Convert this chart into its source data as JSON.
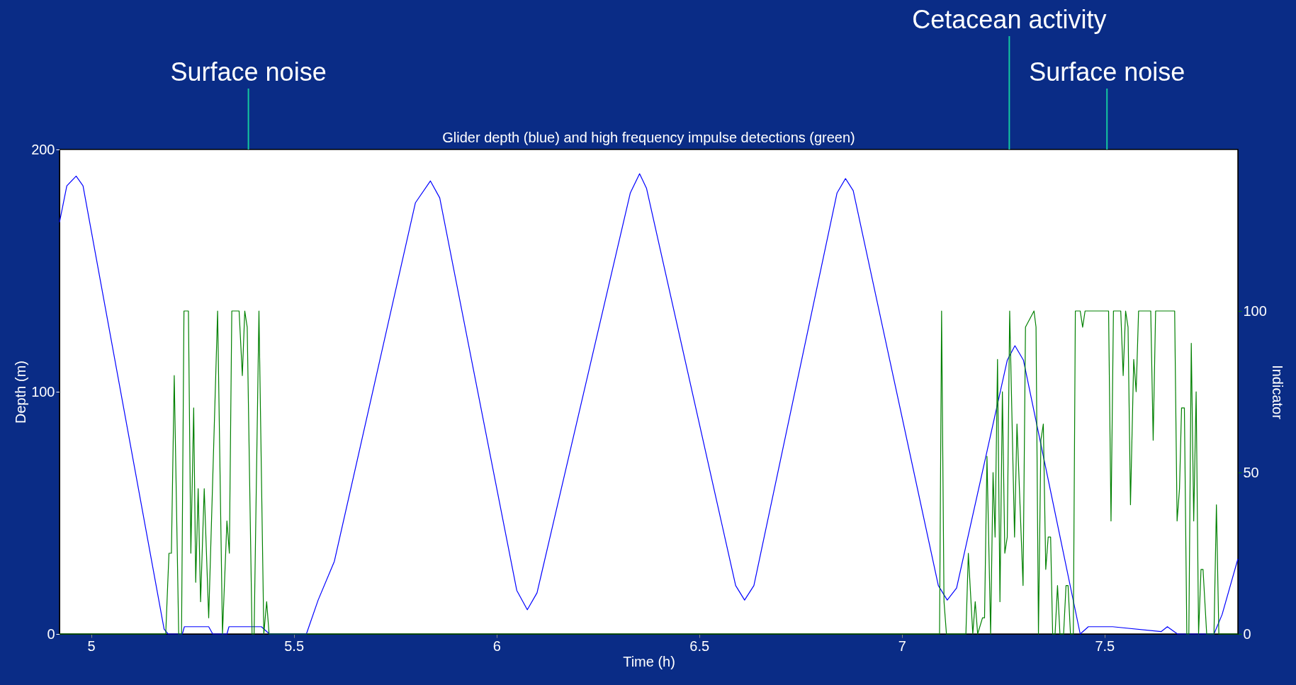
{
  "chart_data": {
    "type": "line",
    "title": "Glider depth (blue) and high frequency impulse detections (green)",
    "xlabel": "Time (h)",
    "ylabel": "Depth (m)",
    "y2label": "Indicator",
    "xlim": [
      4.922,
      7.829
    ],
    "xticks": [
      5,
      5.5,
      6,
      6.5,
      7,
      7.5
    ],
    "ylim": [
      0,
      200
    ],
    "yticks": [
      0,
      100,
      200
    ],
    "y2lim": [
      0,
      150
    ],
    "y2ticks": [
      0,
      50,
      100
    ],
    "grid": false,
    "ref_lines": [
      {
        "axis": "x",
        "value": 5.388,
        "label": "Surface noise",
        "color": "#14c8a0"
      },
      {
        "axis": "x",
        "value": 7.265,
        "label": "Cetacean activity",
        "color": "#14c8a0"
      },
      {
        "axis": "x",
        "value": 7.506,
        "label": "Surface noise",
        "color": "#14c8a0"
      }
    ],
    "series": [
      {
        "color": "#0000ff",
        "x": [
          4.922,
          4.94,
          4.963,
          4.98,
          5.18,
          5.19,
          5.225,
          5.23,
          5.29,
          5.3,
          5.335,
          5.34,
          5.42,
          5.44,
          5.531,
          5.56,
          5.6,
          5.8,
          5.837,
          5.86,
          6.05,
          6.076,
          6.1,
          6.33,
          6.353,
          6.37,
          6.59,
          6.612,
          6.635,
          6.84,
          6.861,
          6.88,
          7.09,
          7.112,
          7.135,
          7.26,
          7.279,
          7.3,
          7.44,
          7.46,
          7.52,
          7.64,
          7.655,
          7.68,
          7.77,
          7.79,
          7.829
        ],
        "values": [
          170,
          185,
          189,
          185,
          2,
          0,
          0,
          3,
          3,
          0,
          0,
          3,
          3,
          0,
          0,
          14,
          30,
          178,
          187,
          180,
          18,
          10,
          17,
          182,
          190,
          184,
          20,
          14,
          20,
          182,
          188,
          183,
          20,
          14,
          19,
          113,
          119,
          113,
          0,
          3,
          3,
          1,
          3,
          0,
          0,
          8,
          31
        ]
      },
      {
        "color": "#008000",
        "axis": "y2",
        "x": [
          4.922,
          5.184,
          5.192,
          5.198,
          5.205,
          5.216,
          5.223,
          5.229,
          5.24,
          5.246,
          5.253,
          5.258,
          5.264,
          5.27,
          5.279,
          5.29,
          5.312,
          5.324,
          5.335,
          5.341,
          5.347,
          5.365,
          5.373,
          5.379,
          5.385,
          5.397,
          5.402,
          5.414,
          5.426,
          5.433,
          5.439,
          7.093,
          7.098,
          7.104,
          7.11,
          7.158,
          7.164,
          7.175,
          7.181,
          7.187,
          7.199,
          7.204,
          7.21,
          7.219,
          7.225,
          7.23,
          7.236,
          7.242,
          7.248,
          7.254,
          7.26,
          7.266,
          7.278,
          7.284,
          7.299,
          7.305,
          7.326,
          7.331,
          7.337,
          7.343,
          7.349,
          7.355,
          7.361,
          7.367,
          7.372,
          7.378,
          7.384,
          7.39,
          7.399,
          7.405,
          7.41,
          7.416,
          7.423,
          7.428,
          7.44,
          7.446,
          7.452,
          7.51,
          7.516,
          7.522,
          7.54,
          7.546,
          7.552,
          7.558,
          7.564,
          7.572,
          7.578,
          7.584,
          7.614,
          7.62,
          7.626,
          7.673,
          7.679,
          7.685,
          7.69,
          7.697,
          7.703,
          7.708,
          7.714,
          7.72,
          7.726,
          7.732,
          7.738,
          7.743,
          7.752,
          7.77,
          7.776,
          7.782,
          7.829
        ],
        "values": [
          0,
          0,
          25,
          25,
          80,
          0,
          0,
          100,
          100,
          25,
          70,
          16,
          45,
          10,
          45,
          5,
          100,
          0,
          35,
          25,
          100,
          100,
          80,
          100,
          95,
          0,
          0,
          100,
          0,
          10,
          0,
          0,
          100,
          10,
          0,
          0,
          25,
          0,
          10,
          0,
          5,
          5,
          55,
          0,
          50,
          30,
          85,
          10,
          75,
          25,
          30,
          100,
          30,
          65,
          15,
          95,
          100,
          95,
          0,
          60,
          65,
          20,
          30,
          30,
          0,
          0,
          15,
          0,
          0,
          15,
          15,
          0,
          0,
          100,
          100,
          95,
          100,
          100,
          35,
          100,
          100,
          80,
          100,
          95,
          40,
          85,
          75,
          100,
          100,
          60,
          100,
          100,
          35,
          45,
          70,
          70,
          0,
          0,
          90,
          35,
          75,
          0,
          20,
          20,
          0,
          0,
          40,
          0,
          0
        ]
      }
    ]
  }
}
